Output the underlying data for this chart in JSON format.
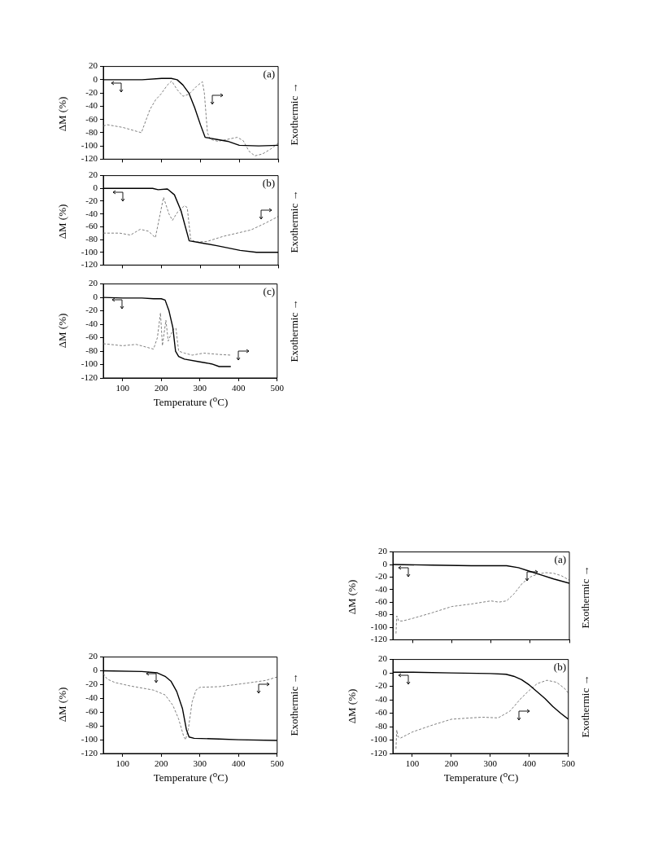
{
  "chart_data": [
    {
      "type": "line",
      "title": "(a)",
      "ylabel": "ΔM  (%)",
      "y2label": "Exothermic →",
      "xlim": [
        50,
        500
      ],
      "xticks": [
        100,
        200,
        300,
        400,
        500
      ],
      "ylim": [
        -120,
        20
      ],
      "yticks": [
        -120,
        -100,
        -80,
        -60,
        -40,
        -20,
        0,
        20
      ],
      "grid": false,
      "legend": false,
      "marker": "none",
      "tick_labels": "y",
      "series": [
        {
          "color": "#000000",
          "line_style": "solid",
          "x": [
            50,
            100,
            150,
            200,
            225,
            240,
            255,
            270,
            285,
            300,
            312,
            340,
            370,
            400,
            450,
            500
          ],
          "values": [
            0,
            0,
            0,
            2,
            2,
            0,
            -8,
            -20,
            -42,
            -68,
            -87,
            -90,
            -93,
            -99,
            -100,
            -99
          ]
        },
        {
          "color": "#808080",
          "line_style": "dashed",
          "x": [
            50,
            60,
            100,
            148,
            170,
            185,
            198,
            215,
            226,
            240,
            255,
            270,
            290,
            305,
            310,
            318,
            325,
            345,
            370,
            395,
            410,
            425,
            440,
            460,
            480,
            500
          ],
          "values": [
            -70,
            -68,
            -72,
            -80,
            -45,
            -30,
            -22,
            -8,
            -2,
            -15,
            -25,
            -22,
            -10,
            -3,
            -20,
            -80,
            -90,
            -93,
            -90,
            -87,
            -92,
            -108,
            -115,
            -112,
            -105,
            -96
          ]
        }
      ]
    },
    {
      "type": "line",
      "title": "(b)",
      "ylabel": "ΔM  (%)",
      "y2label": "Exothermic →",
      "xlim": [
        50,
        500
      ],
      "xticks": [
        100,
        200,
        300,
        400,
        500
      ],
      "ylim": [
        -120,
        20
      ],
      "yticks": [
        -120,
        -100,
        -80,
        -60,
        -40,
        -20,
        0,
        20
      ],
      "grid": false,
      "legend": false,
      "marker": "none",
      "tick_labels": "y",
      "series": [
        {
          "color": "#000000",
          "line_style": "solid",
          "x": [
            50,
            100,
            177,
            191,
            215,
            233,
            250,
            271,
            300,
            345,
            402,
            444,
            500
          ],
          "values": [
            0,
            0,
            0,
            -2,
            -1,
            -10,
            -35,
            -82,
            -85,
            -90,
            -97,
            -100,
            -100
          ]
        },
        {
          "color": "#808080",
          "line_style": "dashed",
          "x": [
            50,
            92,
            120,
            145,
            166,
            184,
            205,
            219,
            228,
            240,
            259,
            266,
            275,
            289,
            317,
            359,
            430,
            465,
            500
          ],
          "values": [
            -70,
            -70,
            -73,
            -64,
            -67,
            -77,
            -14,
            -40,
            -50,
            -38,
            -27,
            -30,
            -80,
            -84,
            -83,
            -75,
            -65,
            -55,
            -44
          ]
        }
      ]
    },
    {
      "type": "line",
      "title": "(c)",
      "xlabel": "Temperature ($^{o}$C)",
      "ylabel": "ΔM  (%)",
      "y2label": "Exothermic →",
      "xlim": [
        50,
        500
      ],
      "xticks": [
        100,
        200,
        300,
        400,
        500
      ],
      "ylim": [
        -120,
        20
      ],
      "yticks": [
        -120,
        -100,
        -80,
        -60,
        -40,
        -20,
        0,
        20
      ],
      "grid": false,
      "legend": false,
      "marker": "none",
      "series": [
        {
          "color": "#000000",
          "line_style": "solid",
          "x": [
            50,
            100,
            150,
            180,
            200,
            210,
            220,
            230,
            237,
            245,
            260,
            300,
            330,
            350,
            380
          ],
          "values": [
            0,
            -1,
            -1,
            -2,
            -2,
            -4,
            -20,
            -45,
            -80,
            -88,
            -92,
            -96,
            -99,
            -103,
            -103
          ]
        },
        {
          "color": "#808080",
          "line_style": "dashed",
          "x": [
            50,
            100,
            135,
            180,
            190,
            198,
            203,
            212,
            218,
            230,
            238,
            245,
            260,
            280,
            310,
            350,
            380
          ],
          "values": [
            -69,
            -72,
            -70,
            -77,
            -60,
            -23,
            -72,
            -34,
            -65,
            -48,
            -46,
            -80,
            -83,
            -86,
            -83,
            -85,
            -86
          ]
        }
      ]
    },
    {
      "type": "line",
      "xlabel": "Temperature ($^{o}$C)",
      "ylabel": "ΔM  (%)",
      "y2label": "Exothermic →",
      "xlim": [
        50,
        500
      ],
      "xticks": [
        100,
        200,
        300,
        400,
        500
      ],
      "ylim": [
        -120,
        20
      ],
      "yticks": [
        -120,
        -100,
        -80,
        -60,
        -40,
        -20,
        0,
        20
      ],
      "grid": false,
      "legend": false,
      "marker": "none",
      "series": [
        {
          "color": "#000000",
          "line_style": "solid",
          "x": [
            50,
            150,
            190,
            210,
            225,
            240,
            255,
            265,
            272,
            285,
            350,
            400,
            500
          ],
          "values": [
            0,
            -1,
            -3,
            -8,
            -15,
            -30,
            -55,
            -85,
            -96,
            -98,
            -99,
            -100,
            -101
          ]
        },
        {
          "color": "#808080",
          "line_style": "dashed",
          "x": [
            50,
            60,
            80,
            120,
            180,
            210,
            230,
            245,
            258,
            263,
            270,
            280,
            290,
            300,
            350,
            420,
            470,
            500
          ],
          "values": [
            -4,
            -12,
            -17,
            -22,
            -28,
            -35,
            -50,
            -70,
            -95,
            -100,
            -85,
            -45,
            -28,
            -24,
            -23,
            -18,
            -14,
            -9
          ]
        }
      ]
    },
    {
      "type": "line",
      "title": "(a)",
      "ylabel": "ΔM  (%)",
      "y2label": "Exothermic →",
      "xlim": [
        50,
        500
      ],
      "xticks": [
        100,
        200,
        300,
        400,
        500
      ],
      "ylim": [
        -120,
        20
      ],
      "yticks": [
        -120,
        -100,
        -80,
        -60,
        -40,
        -20,
        0,
        20
      ],
      "grid": false,
      "legend": false,
      "marker": "none",
      "tick_labels": "y",
      "series": [
        {
          "color": "#000000",
          "line_style": "solid",
          "x": [
            50,
            150,
            250,
            340,
            370,
            400,
            430,
            460,
            500
          ],
          "values": [
            0,
            -1,
            -2,
            -2,
            -5,
            -11,
            -17,
            -23,
            -30
          ]
        },
        {
          "color": "#808080",
          "line_style": "dashed",
          "x": [
            58,
            60,
            65,
            75,
            100,
            150,
            200,
            250,
            300,
            320,
            340,
            360,
            380,
            400,
            420,
            440,
            460,
            480,
            500
          ],
          "values": [
            -110,
            -82,
            -90,
            -90,
            -86,
            -77,
            -67,
            -63,
            -58,
            -60,
            -58,
            -46,
            -30,
            -20,
            -15,
            -13,
            -14,
            -18,
            -25
          ]
        }
      ]
    },
    {
      "type": "line",
      "title": "(b)",
      "xlabel": "Temperature ($^{o}$C)",
      "ylabel": "ΔM  (%)",
      "y2label": "Exothermic →",
      "xlim": [
        50,
        500
      ],
      "xticks": [
        100,
        200,
        300,
        400,
        500
      ],
      "ylim": [
        -120,
        20
      ],
      "yticks": [
        -120,
        -100,
        -80,
        -60,
        -40,
        -20,
        0,
        20
      ],
      "grid": false,
      "legend": false,
      "marker": "none",
      "series": [
        {
          "color": "#000000",
          "line_style": "solid",
          "x": [
            50,
            100,
            200,
            300,
            340,
            360,
            380,
            400,
            420,
            440,
            460,
            480,
            500
          ],
          "values": [
            1,
            1,
            0,
            -1,
            -2,
            -5,
            -10,
            -18,
            -28,
            -38,
            -50,
            -60,
            -69
          ]
        },
        {
          "color": "#808080",
          "line_style": "dashed",
          "x": [
            58,
            60,
            63,
            70,
            100,
            150,
            200,
            250,
            280,
            320,
            350,
            380,
            400,
            420,
            445,
            470,
            490,
            500
          ],
          "values": [
            -113,
            -85,
            -95,
            -97,
            -88,
            -78,
            -69,
            -67,
            -66,
            -67,
            -57,
            -37,
            -26,
            -16,
            -11,
            -14,
            -23,
            -30
          ]
        }
      ]
    }
  ]
}
